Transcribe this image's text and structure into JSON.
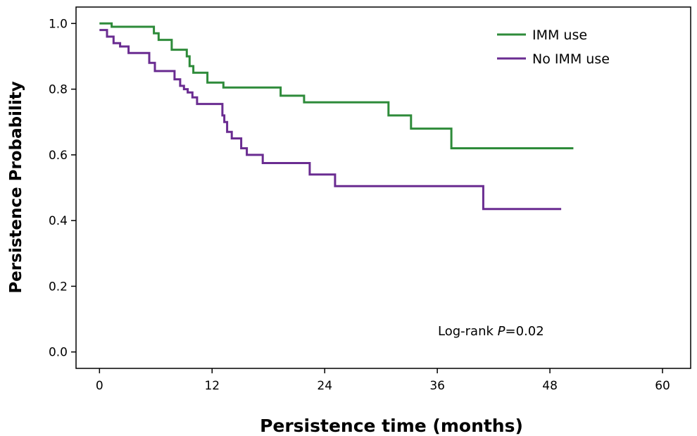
{
  "chart_data": {
    "type": "line",
    "step": true,
    "xlabel": "Persistence time (months)",
    "ylabel": "Persistence Probability",
    "xlim": [
      -2.5,
      63
    ],
    "ylim": [
      -0.05,
      1.05
    ],
    "xticks": [
      0,
      12,
      24,
      36,
      48,
      60
    ],
    "yticks": [
      0.0,
      0.2,
      0.4,
      0.6,
      0.8,
      1.0
    ],
    "xtick_labels": [
      "0",
      "12",
      "24",
      "36",
      "48",
      "60"
    ],
    "ytick_labels": [
      "0.0",
      "0.2",
      "0.4",
      "0.6",
      "0.8",
      "1.0"
    ],
    "legend_position": "top-right",
    "annotation": {
      "prefix": "Log-rank ",
      "italic": "P",
      "suffix": "=0.02"
    },
    "series": [
      {
        "name": "IMM use",
        "color": "#2e8b3a",
        "points": [
          [
            0,
            1.0
          ],
          [
            1.3,
            0.99
          ],
          [
            5.8,
            0.97
          ],
          [
            6.3,
            0.95
          ],
          [
            7.7,
            0.92
          ],
          [
            9.3,
            0.9
          ],
          [
            9.6,
            0.87
          ],
          [
            10,
            0.85
          ],
          [
            11.5,
            0.82
          ],
          [
            13.2,
            0.805
          ],
          [
            19.3,
            0.78
          ],
          [
            21.8,
            0.76
          ],
          [
            30.8,
            0.72
          ],
          [
            33.2,
            0.68
          ],
          [
            37.5,
            0.62
          ],
          [
            50.5,
            0.62
          ]
        ]
      },
      {
        "name": "No IMM use",
        "color": "#6a2c91",
        "points": [
          [
            0,
            0.98
          ],
          [
            0.8,
            0.96
          ],
          [
            1.5,
            0.94
          ],
          [
            2.2,
            0.93
          ],
          [
            3.1,
            0.91
          ],
          [
            5.3,
            0.88
          ],
          [
            5.9,
            0.855
          ],
          [
            8,
            0.83
          ],
          [
            8.6,
            0.81
          ],
          [
            9,
            0.8
          ],
          [
            9.4,
            0.79
          ],
          [
            9.9,
            0.775
          ],
          [
            10.4,
            0.755
          ],
          [
            13.1,
            0.72
          ],
          [
            13.3,
            0.7
          ],
          [
            13.6,
            0.67
          ],
          [
            14.1,
            0.65
          ],
          [
            15.1,
            0.62
          ],
          [
            15.7,
            0.6
          ],
          [
            17.4,
            0.575
          ],
          [
            22.4,
            0.54
          ],
          [
            25.1,
            0.505
          ],
          [
            40.9,
            0.435
          ],
          [
            49.2,
            0.435
          ]
        ]
      }
    ]
  }
}
